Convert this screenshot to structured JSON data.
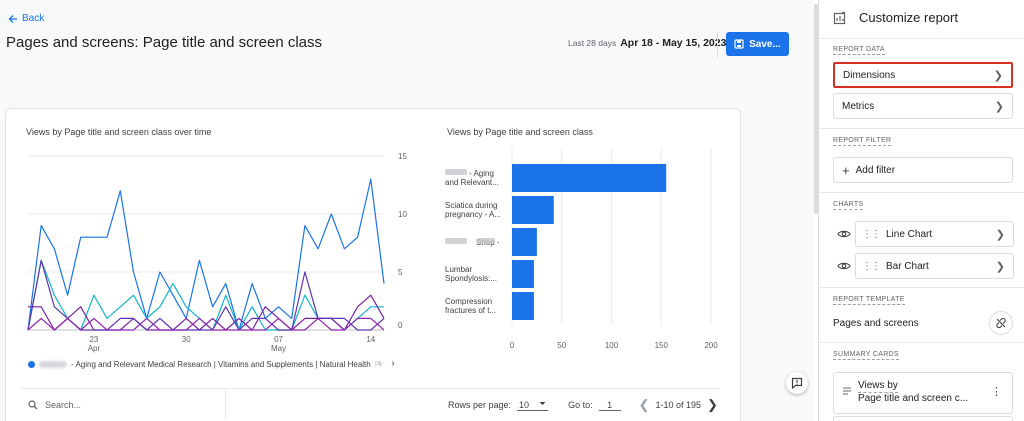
{
  "header": {
    "back_label": "Back",
    "title": "Pages and screens: Page title and screen class",
    "date_prefix": "Last 28 days",
    "date_range": "Apr 18 - May 15, 2023",
    "save_label": "Save..."
  },
  "line_chart_title": "Views by Page title and screen class over time",
  "bar_chart_title": "Views by Page title and screen class",
  "chart_data": [
    {
      "type": "line",
      "title": "Views by Page title and screen class over time",
      "x_ticks": [
        {
          "day": "23",
          "month": "Apr",
          "index": 5
        },
        {
          "day": "30",
          "month": "",
          "index": 12
        },
        {
          "day": "07",
          "month": "May",
          "index": 19
        },
        {
          "day": "14",
          "month": "",
          "index": 26
        }
      ],
      "y_ticks": [
        "15",
        "10",
        "5",
        "0"
      ],
      "ylim": [
        0,
        15
      ],
      "series": [
        {
          "color": "#1a73e8",
          "values": [
            0,
            9,
            7,
            3,
            8,
            8,
            8,
            12,
            5,
            1,
            5,
            3,
            1,
            6,
            2,
            4,
            0,
            4,
            1,
            2,
            1,
            9,
            7,
            10,
            7,
            8,
            13,
            4
          ]
        },
        {
          "color": "#12b5cb",
          "values": [
            0,
            6,
            3,
            1,
            0,
            3,
            1,
            2,
            3,
            1,
            2,
            4,
            2,
            1,
            0,
            3,
            0,
            2,
            0,
            0,
            0,
            3,
            1,
            1,
            0,
            1,
            2,
            2
          ]
        },
        {
          "color": "#7b1fa2",
          "values": [
            2,
            2,
            0,
            1,
            2,
            0,
            0,
            0,
            1,
            0,
            0,
            0,
            1,
            0,
            1,
            0,
            1,
            0,
            2,
            1,
            0,
            1,
            1,
            1,
            0,
            2,
            3,
            1
          ]
        },
        {
          "color": "#5e35b1",
          "values": [
            0,
            6,
            2,
            1,
            0,
            0,
            0,
            1,
            1,
            0,
            1,
            0,
            0,
            0,
            0,
            2,
            0,
            1,
            1,
            0,
            0,
            5,
            1,
            1,
            1,
            0,
            0,
            1
          ]
        },
        {
          "color": "#8e24aa",
          "values": [
            0,
            1,
            0,
            1,
            0,
            1,
            0,
            0,
            0,
            1,
            0,
            0,
            0,
            1,
            0,
            0,
            0,
            0,
            0,
            1,
            0,
            0,
            1,
            0,
            0,
            1,
            1,
            0
          ]
        }
      ]
    },
    {
      "type": "bar",
      "title": "Views by Page title and screen class",
      "categories": [
        {
          "line1": "- Aging",
          "line2": "and Relevant...",
          "blur": true
        },
        {
          "line1": "Sciatica during",
          "line2": "pregnancy - A...",
          "blur": false
        },
        {
          "line1": "Shop -",
          "line2": "",
          "blur": true
        },
        {
          "line1": "Lumbar",
          "line2": "Spondylosis:...",
          "blur": false
        },
        {
          "line1": "Compression",
          "line2": "fractures of t...",
          "blur": false
        }
      ],
      "values": [
        155,
        42,
        25,
        22,
        22
      ],
      "x_ticks": [
        "0",
        "50",
        "100",
        "150",
        "200"
      ],
      "xlim": [
        0,
        200
      ],
      "color": "#1a73e8"
    }
  ],
  "legend": {
    "text": "- Aging and Relevant Medical Research | Vitamins and Supplements | Natural Health",
    "fade_text": "Pr"
  },
  "table_footer": {
    "search_placeholder": "Search...",
    "rows_label": "Rows per page:",
    "rows_value": "10",
    "goto_label": "Go to:",
    "goto_value": "1",
    "range_text": "1-10 of 195"
  },
  "panel": {
    "title": "Customize report",
    "report_data_label": "REPORT DATA",
    "dimensions_label": "Dimensions",
    "metrics_label": "Metrics",
    "report_filter_label": "REPORT FILTER",
    "add_filter_label": "Add filter",
    "charts_label": "CHARTS",
    "line_chart_label": "Line Chart",
    "bar_chart_label": "Bar Chart",
    "report_template_label": "REPORT TEMPLATE",
    "template_name": "Pages and screens",
    "summary_cards_label": "SUMMARY CARDS",
    "summary_card_line1": "Views by",
    "summary_card_line2": "Page title and screen c..."
  },
  "colors": {
    "accent": "#1a73e8",
    "highlight_border": "#d93025"
  }
}
